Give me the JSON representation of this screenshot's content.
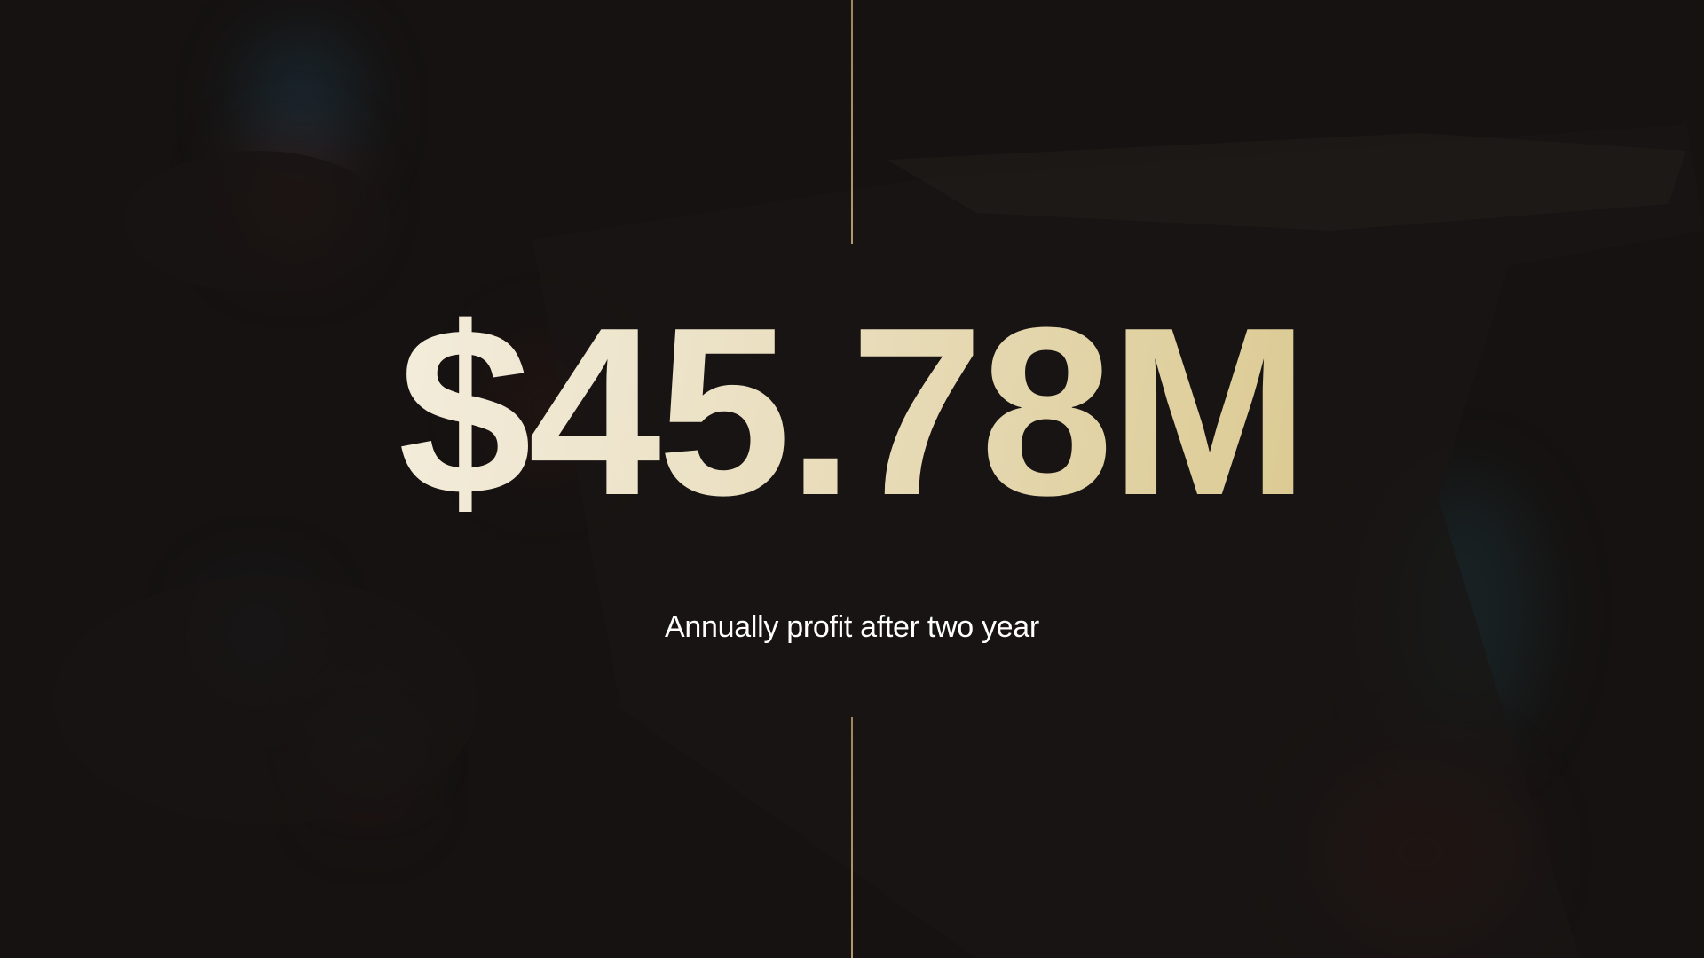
{
  "stat": {
    "value": "$45.78M",
    "caption": "Annually profit after two year"
  },
  "colors": {
    "background": "#151211",
    "accent_gold": "#cdb86e",
    "value_gradient_start": "#fbf9f2",
    "value_gradient_end": "#cdb86e",
    "divider": "#b89b68",
    "caption_text": "#ffffff"
  }
}
